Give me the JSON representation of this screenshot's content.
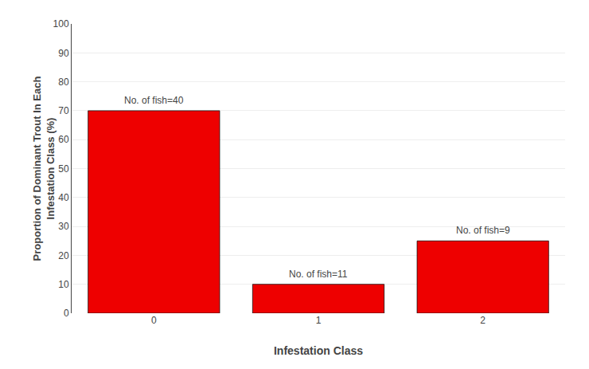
{
  "chart_data": {
    "type": "bar",
    "categories": [
      "0",
      "1",
      "2"
    ],
    "values": [
      70,
      10,
      25
    ],
    "annotations": [
      "No. of fish=40",
      "No. of fish=11",
      "No. of fish=9"
    ],
    "color": "#EE0000",
    "xlabel": "Infestation Class",
    "ylabel": "Proportion of Dominant Trout In Each\nInfestation Class (%)",
    "ylim": [
      0,
      100
    ],
    "yticks": [
      0,
      10,
      20,
      30,
      40,
      50,
      60,
      70,
      80,
      90,
      100
    ],
    "grid": true
  }
}
